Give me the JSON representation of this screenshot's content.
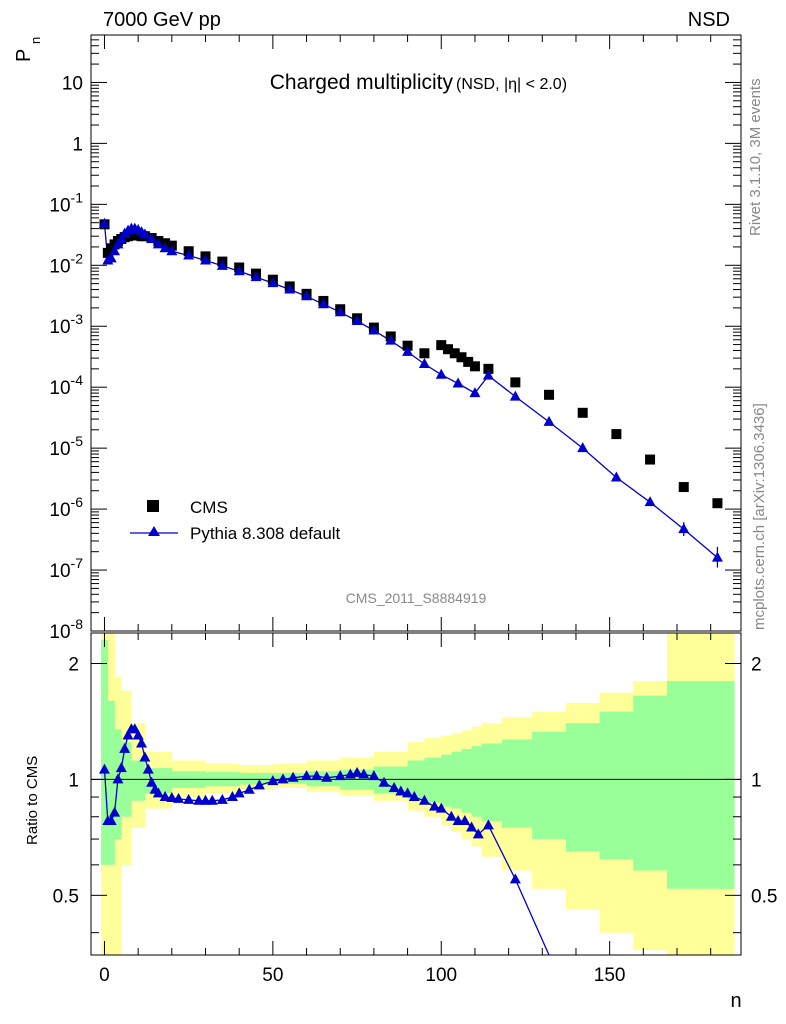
{
  "header": {
    "left": "7000 GeV pp",
    "right": "NSD"
  },
  "side": {
    "rivet": "Rivet 3.1.10,  3M events",
    "mcplots": "mcplots.cern.ch [arXiv:1306.3436]"
  },
  "chart_data": [
    {
      "type": "scatter",
      "title": "Charged multiplicity",
      "subtitle": "(NSD, |η| < 2.0)",
      "ylabel": "P",
      "ylabel_sub": "n",
      "xlim": [
        -4,
        189
      ],
      "ylim": [
        1e-08,
        60
      ],
      "yscale": "log",
      "yticks": [
        1e-08,
        1e-07,
        1e-06,
        1e-05,
        0.0001,
        0.001,
        0.01,
        0.1,
        1,
        10
      ],
      "ytick_labels": [
        "10^-8",
        "10^-7",
        "10^-6",
        "10^-5",
        "10^-4",
        "10^-3",
        "10^-2",
        "10^-1",
        "1",
        "10"
      ],
      "analysis_id": "CMS_2011_S8884919",
      "legend": {
        "position": "bottom-left",
        "entries": [
          "CMS",
          "Pythia 8.308 default"
        ]
      },
      "series": [
        {
          "name": "CMS",
          "marker": "square",
          "color": "#000000",
          "x": [
            0,
            1,
            2,
            3,
            4,
            5,
            6,
            7,
            8,
            9,
            10,
            11,
            12,
            14,
            16,
            18,
            20,
            25,
            30,
            35,
            40,
            45,
            50,
            55,
            60,
            65,
            70,
            75,
            80,
            85,
            90,
            95,
            100,
            102,
            104,
            106,
            108,
            110,
            114,
            122,
            132,
            142,
            152,
            162,
            172,
            182
          ],
          "y": [
            0.047,
            0.016,
            0.019,
            0.022,
            0.025,
            0.027,
            0.029,
            0.03,
            0.031,
            0.031,
            0.031,
            0.03,
            0.03,
            0.028,
            0.025,
            0.023,
            0.021,
            0.017,
            0.014,
            0.0115,
            0.0092,
            0.0073,
            0.0058,
            0.0045,
            0.0034,
            0.0026,
            0.0019,
            0.00135,
            0.00095,
            0.00068,
            0.00048,
            0.00036,
            0.00049,
            0.00042,
            0.00036,
            0.00031,
            0.00026,
            0.00022,
            0.0002,
            0.00012,
            7.5e-05,
            3.8e-05,
            1.7e-05,
            6.5e-06,
            2.3e-06,
            1.25e-06
          ]
        },
        {
          "name": "Pythia 8.308 default",
          "marker": "triangle",
          "color": "#0000cc",
          "x": [
            0,
            1,
            2,
            3,
            4,
            5,
            6,
            7,
            8,
            9,
            10,
            11,
            12,
            14,
            16,
            18,
            20,
            25,
            30,
            35,
            40,
            45,
            50,
            55,
            60,
            65,
            70,
            75,
            80,
            85,
            90,
            95,
            100,
            105,
            110,
            114,
            122,
            132,
            142,
            152,
            162,
            172,
            182
          ],
          "y": [
            0.048,
            0.012,
            0.013,
            0.017,
            0.022,
            0.027,
            0.033,
            0.037,
            0.04,
            0.04,
            0.038,
            0.035,
            0.032,
            0.027,
            0.022,
            0.019,
            0.017,
            0.0145,
            0.012,
            0.0098,
            0.008,
            0.0064,
            0.0051,
            0.004,
            0.0031,
            0.0023,
            0.0017,
            0.00122,
            0.00085,
            0.00058,
            0.00038,
            0.00024,
            0.00016,
            0.000115,
            8e-05,
            0.000155,
            7e-05,
            2.7e-05,
            1e-05,
            3.3e-06,
            1.3e-06,
            4.7e-07,
            1.6e-07
          ],
          "yerr_last": [
            1.1e-07,
            2.4e-07
          ]
        }
      ]
    },
    {
      "type": "line",
      "ylabel": "Ratio to CMS",
      "xlabel": "n",
      "xlim": [
        -4,
        189
      ],
      "ylim": [
        0.35,
        2.4
      ],
      "yscale": "log",
      "yticks": [
        0.5,
        1,
        2
      ],
      "ytick_labels": [
        "0.5",
        "1",
        "2"
      ],
      "xticks": [
        0,
        50,
        100,
        150
      ],
      "xtick_labels": [
        "0",
        "50",
        "100",
        "150"
      ],
      "bands": [
        {
          "name": "",
          "color": "#ffff99",
          "x": [
            -1,
            1,
            3,
            5,
            8,
            12,
            20,
            30,
            40,
            50,
            60,
            70,
            80,
            90,
            95,
            100,
            103,
            106,
            109,
            112,
            118,
            127,
            137,
            147,
            157,
            167,
            177,
            187
          ],
          "lo": [
            0.3,
            0.3,
            0.3,
            0.6,
            0.75,
            0.84,
            0.9,
            0.92,
            0.94,
            0.95,
            0.93,
            0.91,
            0.88,
            0.83,
            0.8,
            0.76,
            0.73,
            0.7,
            0.67,
            0.63,
            0.58,
            0.52,
            0.46,
            0.4,
            0.36,
            0.33,
            0.3,
            0.3
          ],
          "hi": [
            2.4,
            2.4,
            1.85,
            1.7,
            1.4,
            1.18,
            1.12,
            1.1,
            1.09,
            1.1,
            1.12,
            1.14,
            1.18,
            1.25,
            1.28,
            1.3,
            1.32,
            1.34,
            1.37,
            1.4,
            1.45,
            1.5,
            1.58,
            1.68,
            1.8,
            2.4,
            2.4,
            2.4
          ]
        },
        {
          "name": "",
          "color": "#99ff99",
          "x": [
            -1,
            1,
            3,
            5,
            8,
            12,
            20,
            30,
            40,
            50,
            60,
            70,
            80,
            90,
            95,
            100,
            103,
            106,
            109,
            112,
            118,
            127,
            137,
            147,
            157,
            167,
            177,
            187
          ],
          "lo": [
            0.6,
            0.6,
            0.7,
            0.8,
            0.88,
            0.92,
            0.95,
            0.96,
            0.97,
            0.975,
            0.96,
            0.94,
            0.92,
            0.89,
            0.87,
            0.85,
            0.84,
            0.82,
            0.8,
            0.78,
            0.75,
            0.7,
            0.65,
            0.62,
            0.58,
            0.52,
            0.52,
            0.52
          ],
          "hi": [
            2.3,
            1.6,
            1.35,
            1.25,
            1.12,
            1.07,
            1.05,
            1.045,
            1.04,
            1.04,
            1.05,
            1.06,
            1.08,
            1.12,
            1.14,
            1.16,
            1.18,
            1.2,
            1.22,
            1.24,
            1.27,
            1.33,
            1.4,
            1.5,
            1.65,
            1.8,
            1.8,
            1.8
          ]
        }
      ],
      "reference_line": 1,
      "series": [
        {
          "name": "Pythia 8.308 default",
          "color": "#0000cc",
          "x": [
            0,
            1,
            2,
            3,
            4,
            5,
            6,
            7,
            8,
            9,
            10,
            11,
            12,
            13,
            14,
            15,
            16,
            18,
            20,
            22,
            25,
            28,
            30,
            32,
            35,
            38,
            40,
            43,
            46,
            50,
            53,
            56,
            60,
            63,
            66,
            70,
            73,
            75,
            77,
            80,
            83,
            86,
            88,
            90,
            92,
            95,
            98,
            100,
            103,
            105,
            107,
            109,
            111,
            114,
            122,
            132
          ],
          "y": [
            1.06,
            0.78,
            0.78,
            0.82,
            1.0,
            1.07,
            1.2,
            1.3,
            1.35,
            1.35,
            1.3,
            1.24,
            1.14,
            1.06,
            0.98,
            0.94,
            0.92,
            0.9,
            0.895,
            0.89,
            0.885,
            0.88,
            0.88,
            0.88,
            0.885,
            0.9,
            0.92,
            0.94,
            0.965,
            0.99,
            1.0,
            1.01,
            1.02,
            1.02,
            1.01,
            1.02,
            1.03,
            1.04,
            1.03,
            1.02,
            0.98,
            0.95,
            0.93,
            0.92,
            0.9,
            0.88,
            0.85,
            0.84,
            0.8,
            0.78,
            0.78,
            0.75,
            0.72,
            0.76,
            0.55,
            0.35
          ]
        }
      ]
    }
  ]
}
